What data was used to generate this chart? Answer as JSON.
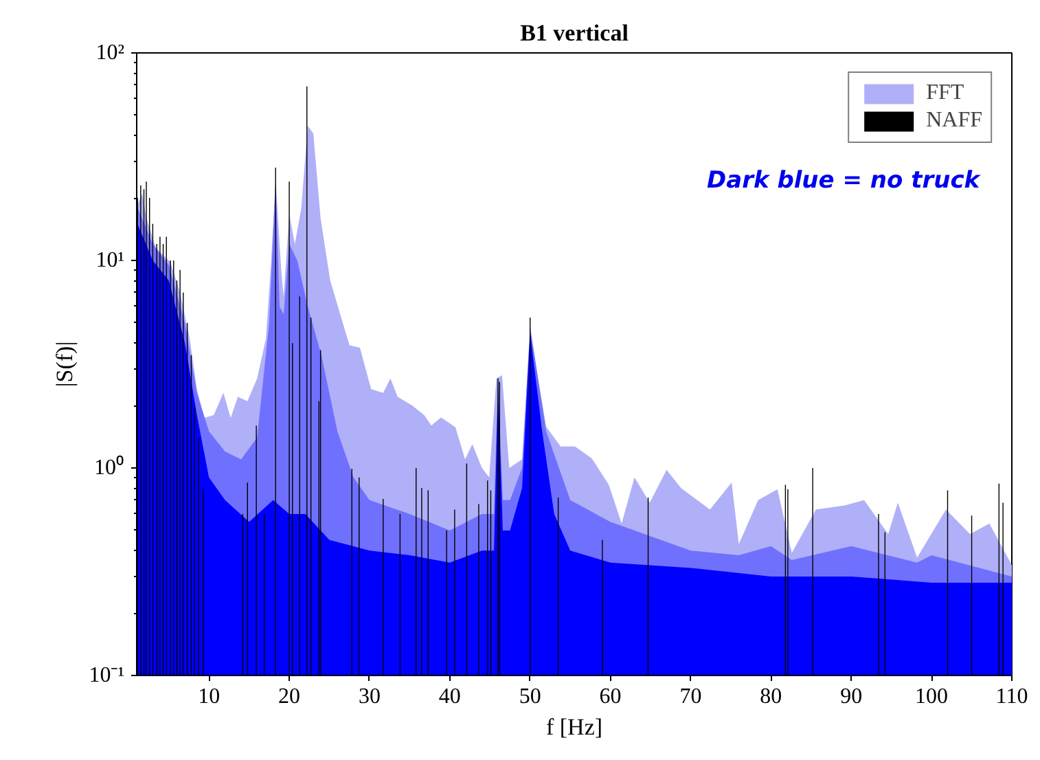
{
  "chart_data": {
    "type": "area",
    "title": "B1 vertical",
    "xlabel": "f [Hz]",
    "ylabel": "|S(f)|",
    "annotations": [
      "Dark blue = no truck"
    ],
    "log": "y",
    "grid": false,
    "legend": "top right",
    "xlim": [
      1,
      110
    ],
    "xticks": [
      10,
      20,
      30,
      40,
      50,
      60,
      70,
      80,
      90,
      100,
      110
    ],
    "ylim": [
      0.1,
      100
    ],
    "yticks": [
      {
        "value": 0.1,
        "label": "10⁻¹"
      },
      {
        "value": 1,
        "label": "10⁰"
      },
      {
        "value": 10,
        "label": "10¹"
      },
      {
        "value": 100,
        "label": "10²"
      }
    ],
    "series": [
      {
        "name": "FFT",
        "color": "#b0b0f8",
        "x": [
          1.1,
          1.7,
          2.2,
          3.4,
          5.2,
          6.4,
          7.6,
          8.5,
          9.4,
          10.6,
          11.8,
          12.7,
          13.6,
          14.8,
          16,
          17.1,
          17.7,
          18.3,
          19,
          19.3,
          20,
          20.7,
          21.5,
          22.3,
          23,
          23.9,
          25.1,
          26.6,
          27.5,
          28.8,
          30.2,
          31.7,
          32.6,
          33.5,
          35.3,
          36.8,
          37.7,
          38.9,
          40.7,
          41.9,
          42.8,
          44,
          44.9,
          45.8,
          46.5,
          47.4,
          49,
          50,
          50.8,
          52,
          53.8,
          55.6,
          57.7,
          59.8,
          61.4,
          63,
          64.9,
          67,
          68.8,
          72.4,
          75.1,
          76,
          78.4,
          80.8,
          82.6,
          85.6,
          89.2,
          91.6,
          94.6,
          95.8,
          98.2,
          101.8,
          104.8,
          107.2,
          110
        ],
        "values": [
          18.6,
          21,
          16,
          11.5,
          9.8,
          7,
          4.2,
          2.4,
          1.74,
          1.8,
          2.3,
          1.74,
          2.2,
          2.1,
          2.7,
          4.2,
          9.3,
          24.5,
          9,
          6.7,
          16.7,
          12,
          17.8,
          44.6,
          40.8,
          16,
          8,
          5.1,
          3.9,
          3.8,
          2.4,
          2.3,
          2.7,
          2.2,
          2.0,
          1.8,
          1.6,
          1.75,
          1.57,
          1.1,
          1.3,
          1.0,
          0.9,
          2.7,
          2.8,
          1.0,
          1.1,
          4.6,
          3.0,
          1.58,
          1.27,
          1.27,
          1.11,
          0.83,
          0.54,
          0.9,
          0.68,
          0.98,
          0.8,
          0.63,
          0.85,
          0.43,
          0.7,
          0.79,
          0.39,
          0.63,
          0.66,
          0.7,
          0.48,
          0.68,
          0.37,
          0.63,
          0.48,
          0.54,
          0.34
        ]
      },
      {
        "color": "#7070ff",
        "x": [
          1.1,
          3,
          5,
          7,
          8.5,
          10,
          12,
          14,
          16,
          17.5,
          18.3,
          18.8,
          19.3,
          20,
          21,
          22.3,
          24,
          26,
          28,
          30,
          35,
          40,
          44,
          45.5,
          46,
          46.6,
          47.5,
          49,
          50,
          52,
          55,
          60,
          70,
          76,
          80,
          82.6,
          90,
          98.2,
          100,
          110
        ],
        "values": [
          18,
          12,
          9.5,
          5,
          2.3,
          1.5,
          1.2,
          1.1,
          1.4,
          5,
          24,
          6,
          5.5,
          12,
          10,
          6,
          3.5,
          1.5,
          0.9,
          0.7,
          0.6,
          0.5,
          0.6,
          0.6,
          2.7,
          0.7,
          0.7,
          1.0,
          4.8,
          1.5,
          0.7,
          0.55,
          0.4,
          0.38,
          0.42,
          0.36,
          0.42,
          0.35,
          0.38,
          0.3
        ]
      },
      {
        "color": "#0000ff",
        "x": [
          1.1,
          3,
          5,
          7,
          8.5,
          10,
          12,
          15,
          18,
          20,
          22,
          25,
          30,
          35,
          40,
          44,
          45.5,
          46,
          46.6,
          47.5,
          49,
          50,
          51.5,
          53,
          55,
          60,
          70,
          80,
          90,
          100,
          110
        ],
        "values": [
          15,
          10,
          8,
          4,
          1.8,
          0.9,
          0.7,
          0.55,
          0.7,
          0.6,
          0.6,
          0.45,
          0.4,
          0.38,
          0.35,
          0.4,
          0.4,
          2.5,
          0.5,
          0.5,
          0.8,
          4.5,
          1.5,
          0.6,
          0.4,
          0.35,
          0.33,
          0.3,
          0.3,
          0.28,
          0.28
        ]
      },
      {
        "name": "NAFF",
        "type": "bar",
        "color": "#000000",
        "x": [
          1.1,
          1.5,
          1.9,
          2.2,
          2.6,
          3.0,
          3.5,
          3.9,
          4.3,
          4.7,
          5.2,
          5.6,
          6.0,
          6.4,
          6.8,
          7.3,
          7.8,
          8.2,
          8.7,
          9.3,
          14.2,
          14.8,
          15.9,
          16.9,
          18.3,
          20.0,
          20.4,
          21.3,
          22.2,
          22.7,
          23.7,
          23.9,
          27.8,
          28.7,
          31.7,
          33.8,
          35.8,
          36.5,
          37.3,
          39.6,
          40.6,
          42.1,
          43.6,
          44.7,
          45.1,
          46.0,
          46.2,
          50,
          53.5,
          59,
          64.7,
          81.8,
          82.1,
          85.2,
          93.4,
          94.2,
          102,
          105,
          108.4,
          108.9
        ],
        "values": [
          20,
          23,
          22,
          24,
          20,
          15,
          12,
          13,
          12,
          13,
          10,
          10,
          8,
          9,
          7,
          5,
          3.5,
          2,
          1.4,
          0.8,
          0.6,
          0.85,
          1.6,
          0.6,
          28,
          24,
          4.0,
          6.7,
          69,
          5.3,
          2.1,
          3.7,
          0.99,
          0.9,
          0.71,
          0.6,
          1.0,
          0.8,
          0.78,
          0.5,
          0.63,
          1.05,
          0.67,
          0.87,
          0.78,
          2.7,
          2.6,
          5.3,
          0.72,
          0.45,
          0.72,
          0.83,
          0.79,
          1.0,
          0.6,
          0.49,
          0.78,
          0.59,
          0.84,
          0.68
        ]
      }
    ]
  }
}
